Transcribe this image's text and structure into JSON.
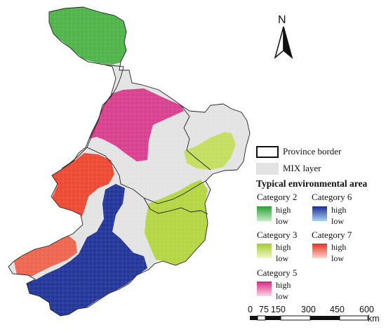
{
  "north_arrow": {
    "label": "N"
  },
  "legend": {
    "province_border": "Province border",
    "mix_layer": "MIX layer",
    "title": "Typical environmental area",
    "categories": [
      {
        "label": "Category 2",
        "high": "high",
        "low": "low",
        "color_high": "#2e9f33",
        "color_low": "#c6ecc5"
      },
      {
        "label": "Category 6",
        "high": "high",
        "low": "low",
        "color_high": "#1a2c97",
        "color_low": "#a9d2f5"
      },
      {
        "label": "Category  3",
        "high": "high",
        "low": "low",
        "color_high": "#a6cc2c",
        "color_low": "#eef7cf"
      },
      {
        "label": "Category 7",
        "high": "high",
        "low": "low",
        "color_high": "#e8301e",
        "color_low": "#fcd8d0"
      },
      {
        "label": "Category 5",
        "high": "high",
        "low": "low",
        "color_high": "#d8247f",
        "color_low": "#fbd7e9"
      }
    ]
  },
  "scale_bar": {
    "ticks": [
      "0",
      "75",
      "150",
      "300",
      "450",
      "600"
    ],
    "unit": "km"
  },
  "colors": {
    "mix": "#e3e3e3",
    "category_2": "#53b54d",
    "category_3": "#b7d845",
    "category_5": "#d63d8f",
    "category_6": "#1f3596",
    "category_7": "#ec4430"
  }
}
